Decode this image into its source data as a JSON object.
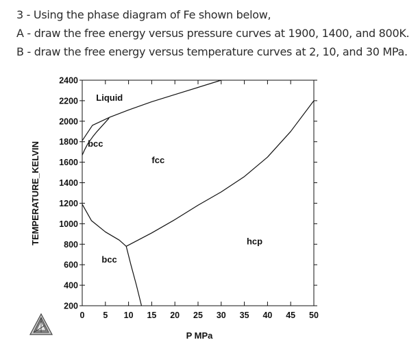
{
  "question": {
    "line1": "3 - Using the phase diagram of Fe shown below,",
    "line2": "A - draw the free energy versus pressure curves at 1900, 1400, and 800K.",
    "line3": "B - draw the free energy versus temperature curves at 2, 10, and 30 MPa."
  },
  "chart_data": {
    "type": "line",
    "xlabel": "P MPa",
    "ylabel": "TEMPERATURE_KELVIN",
    "xlim": [
      0,
      50
    ],
    "ylim": [
      200,
      2400
    ],
    "x_ticks": [
      0,
      5,
      10,
      15,
      20,
      25,
      30,
      35,
      40,
      45,
      50
    ],
    "y_ticks": [
      200,
      400,
      600,
      800,
      1000,
      1200,
      1400,
      1600,
      1800,
      2000,
      2200,
      2400
    ],
    "x_tick_labels": [
      "0",
      "5",
      "10",
      "15",
      "20",
      "25",
      "30",
      "35",
      "40",
      "45",
      "50"
    ],
    "y_tick_labels": [
      "200",
      "400",
      "600",
      "800",
      "1000",
      "1200",
      "1400",
      "1600",
      "1800",
      "2000",
      "2200",
      "2400"
    ],
    "series": [
      {
        "id": "liquid_boundary",
        "x": [
          0,
          2.2,
          6,
          10,
          15,
          20,
          25,
          30
        ],
        "y": [
          1810,
          1960,
          2040,
          2110,
          2190,
          2260,
          2330,
          2400
        ]
      },
      {
        "id": "bcc_fcc_high",
        "x": [
          0,
          0.5,
          1.2,
          2.3,
          3.2,
          5.8
        ],
        "y": [
          1670,
          1720,
          1780,
          1850,
          1900,
          2030
        ]
      },
      {
        "id": "bcc_fcc_low",
        "x": [
          0,
          2,
          5,
          8,
          9.5
        ],
        "y": [
          1190,
          1030,
          920,
          840,
          780
        ]
      },
      {
        "id": "bcc_hcp",
        "x": [
          9.5,
          10.5,
          11.7,
          12.8
        ],
        "y": [
          780,
          600,
          400,
          200
        ]
      },
      {
        "id": "fcc_hcp",
        "x": [
          9.5,
          15,
          20,
          25,
          30,
          35,
          40,
          45,
          50
        ],
        "y": [
          780,
          910,
          1040,
          1180,
          1310,
          1460,
          1650,
          1900,
          2200
        ]
      }
    ],
    "regions": [
      {
        "label": "Liquid",
        "x": 3,
        "y": 2200
      },
      {
        "label": "bcc",
        "x": 1.2,
        "y": 1750
      },
      {
        "label": "fcc",
        "x": 15,
        "y": 1590
      },
      {
        "label": "hcp",
        "x": 35.5,
        "y": 800
      },
      {
        "label": "bcc",
        "x": 4.2,
        "y": 620
      }
    ]
  },
  "logo": {
    "name": "thermo-calc-logo-icon"
  }
}
